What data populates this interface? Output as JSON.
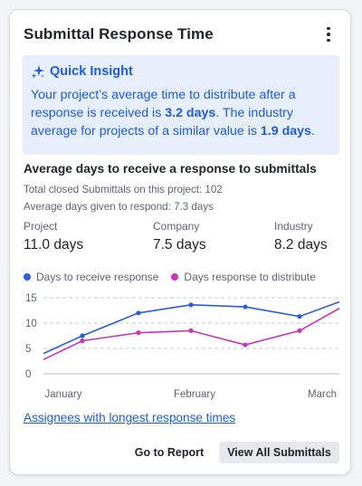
{
  "card": {
    "title": "Submittal Response Time",
    "menu_icon": "kebab-menu-icon"
  },
  "insight": {
    "icon": "sparkle-icon",
    "title": "Quick Insight",
    "text_1": "Your project’s average time to distribute after a response is received is ",
    "value_project": "3.2 days",
    "text_2": ". The industry average for projects of a similar value is ",
    "value_industry": "1.9 days",
    "text_3": "."
  },
  "section": {
    "title": "Average days to receive a response to submittals",
    "total_closed": "Total closed Submittals on this project: 102",
    "avg_given": "Average days given to respond: 7.3 days"
  },
  "stats": [
    {
      "label": "Project",
      "value": "11.0 days"
    },
    {
      "label": "Company",
      "value": "7.5 days"
    },
    {
      "label": "Industry",
      "value": "8.2 days"
    }
  ],
  "chart_data": {
    "type": "line",
    "x": [
      "Jan 1",
      "Jan 15",
      "Feb 1",
      "Feb 15",
      "Mar 1",
      "Mar 15",
      "Mar 24"
    ],
    "x_ticks": [
      "January",
      "February",
      "March"
    ],
    "y_ticks": [
      0,
      5,
      10,
      15
    ],
    "ylim": [
      0,
      15
    ],
    "grid": "dashed-horizontal",
    "legend_position": "top",
    "series": [
      {
        "name": "Days to receive response",
        "color": "#2a5fd6",
        "values": [
          4.0,
          7.5,
          12.0,
          13.6,
          13.2,
          11.3,
          14.2
        ]
      },
      {
        "name": "Days response to distribute",
        "color": "#cc33b8",
        "values": [
          2.8,
          6.5,
          8.1,
          8.5,
          5.7,
          8.5,
          12.9
        ]
      }
    ]
  },
  "links": {
    "assignees": "Assignees with longest response times"
  },
  "buttons": {
    "report": "Go to Report",
    "all": "View All Submittals"
  }
}
